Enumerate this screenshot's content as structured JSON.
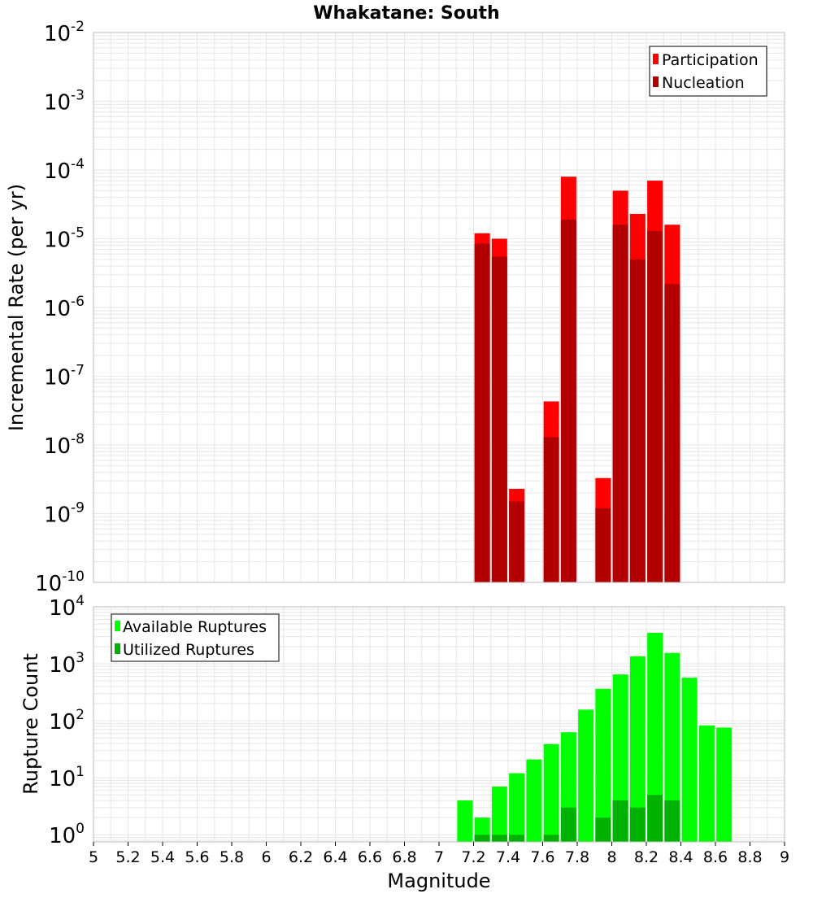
{
  "title": "Whakatane: South",
  "colors": {
    "participation": "#ff0000",
    "nucleation": "#b20000",
    "available": "#00ff00",
    "utilized": "#00b200",
    "grid": "#e6e6e6",
    "frame": "#bbbbbb"
  },
  "chart_data": [
    {
      "type": "bar",
      "panel": "top",
      "xlabel": "",
      "ylabel": "Incremental Rate (per yr)",
      "xlim": [
        5,
        9
      ],
      "ylim": [
        1e-10,
        0.01
      ],
      "yscale": "log",
      "grid": true,
      "legend_placement": "top-right",
      "y_ticks": [
        {
          "value": 0.01,
          "base": "10",
          "exp": "-2"
        },
        {
          "value": 0.001,
          "base": "10",
          "exp": "-3"
        },
        {
          "value": 0.0001,
          "base": "10",
          "exp": "-4"
        },
        {
          "value": 1e-05,
          "base": "10",
          "exp": "-5"
        },
        {
          "value": 1e-06,
          "base": "10",
          "exp": "-6"
        },
        {
          "value": 1e-07,
          "base": "10",
          "exp": "-7"
        },
        {
          "value": 1e-08,
          "base": "10",
          "exp": "-8"
        },
        {
          "value": 1e-09,
          "base": "10",
          "exp": "-9"
        },
        {
          "value": 1e-10,
          "base": "10",
          "exp": "-10"
        }
      ],
      "x": [
        7.25,
        7.35,
        7.45,
        7.65,
        7.75,
        7.95,
        8.05,
        8.15,
        8.25,
        8.35
      ],
      "series": [
        {
          "name": "Participation",
          "values": [
            1.2e-05,
            1e-05,
            2.3e-09,
            4.3e-08,
            8e-05,
            3.3e-09,
            5e-05,
            2.3e-05,
            7e-05,
            1.6e-05
          ]
        },
        {
          "name": "Nucleation",
          "values": [
            8.5e-06,
            5.5e-06,
            1.5e-09,
            1.3e-08,
            1.9e-05,
            1.2e-09,
            1.6e-05,
            5e-06,
            1.3e-05,
            2.2e-06
          ]
        }
      ]
    },
    {
      "type": "bar",
      "panel": "bottom",
      "xlabel": "Magnitude",
      "ylabel": "Rupture Count",
      "xlim": [
        5,
        9
      ],
      "ylim": [
        0.75,
        10000
      ],
      "yscale": "log",
      "grid": true,
      "legend_placement": "top-left",
      "x_ticks": [
        "5",
        "5.2",
        "5.4",
        "5.6",
        "5.8",
        "6",
        "6.2",
        "6.4",
        "6.6",
        "6.8",
        "7",
        "7.2",
        "7.4",
        "7.6",
        "7.8",
        "8",
        "8.2",
        "8.4",
        "8.6",
        "8.8",
        "9"
      ],
      "y_ticks": [
        {
          "value": 10000,
          "base": "10",
          "exp": "4"
        },
        {
          "value": 1000,
          "base": "10",
          "exp": "3"
        },
        {
          "value": 100,
          "base": "10",
          "exp": "2"
        },
        {
          "value": 10,
          "base": "10",
          "exp": "1"
        },
        {
          "value": 1,
          "base": "10",
          "exp": "0"
        }
      ],
      "x": [
        7.15,
        7.25,
        7.35,
        7.45,
        7.55,
        7.65,
        7.75,
        7.85,
        7.95,
        8.05,
        8.15,
        8.25,
        8.35,
        8.45,
        8.55,
        8.65
      ],
      "series": [
        {
          "name": "Available Ruptures",
          "values": [
            4,
            2,
            7,
            12,
            21,
            39,
            63,
            157,
            364,
            650,
            1350,
            3500,
            1550,
            570,
            83,
            76
          ]
        },
        {
          "name": "Utilized Ruptures",
          "values": [
            0,
            1,
            1,
            1,
            0,
            1,
            3,
            0,
            2,
            4,
            3,
            5,
            4,
            0,
            0,
            0
          ]
        }
      ]
    }
  ]
}
